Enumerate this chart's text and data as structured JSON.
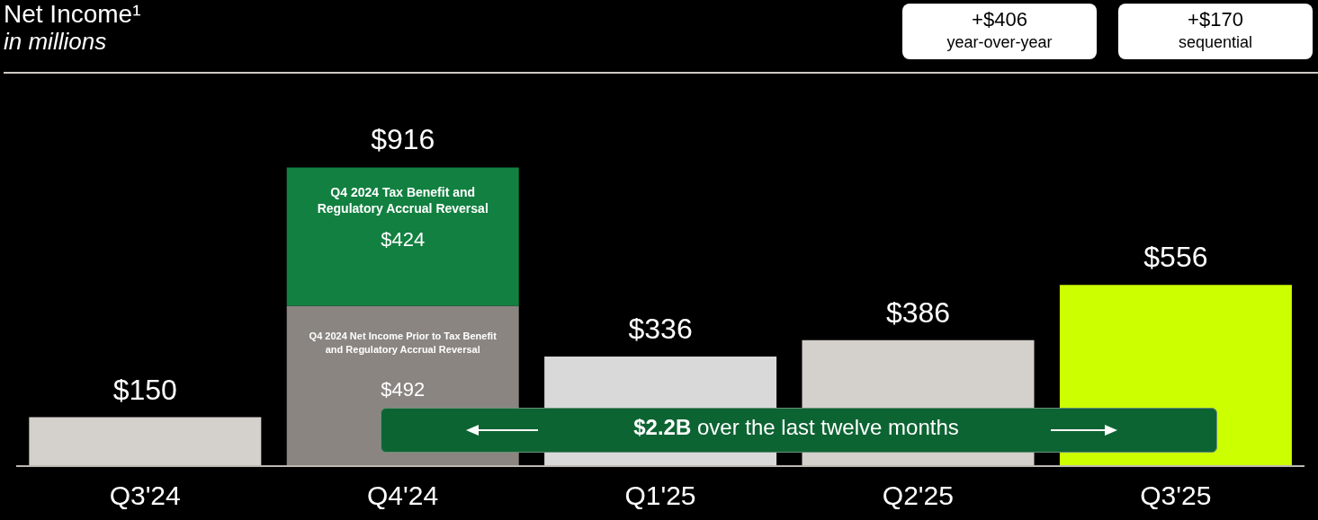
{
  "chart_data": {
    "type": "bar",
    "title": "Net Income¹",
    "subtitle": "in millions",
    "stacked": true,
    "categories": [
      "Q3'24",
      "Q4'24",
      "Q1'25",
      "Q2'25",
      "Q3'25"
    ],
    "series": [
      {
        "name": "Q4 2024 Net Income Prior to Tax Benefit and Regulatory Accrual Reversal",
        "colors": [
          "#d4d0cb",
          "#8a8581",
          "#d9d9d9",
          "#d4d0cb",
          "#ccff00"
        ],
        "values": [
          150,
          492,
          336,
          386,
          556
        ],
        "value_labels": [
          "$150",
          "$492",
          "$336",
          "$386",
          "$556"
        ]
      },
      {
        "name": "Q4 2024 Tax Benefit and Regulatory Accrual Reversal",
        "color": "#128040",
        "values": [
          null,
          424,
          null,
          null,
          null
        ],
        "value_labels": [
          null,
          "$424",
          null,
          null,
          null
        ]
      }
    ],
    "totals": [
      null,
      "$916",
      null,
      null,
      null
    ],
    "annotations": [
      "+$406",
      "year-over-year",
      "+$170",
      "sequential",
      "$2.2B over the last twelve months"
    ]
  }
}
